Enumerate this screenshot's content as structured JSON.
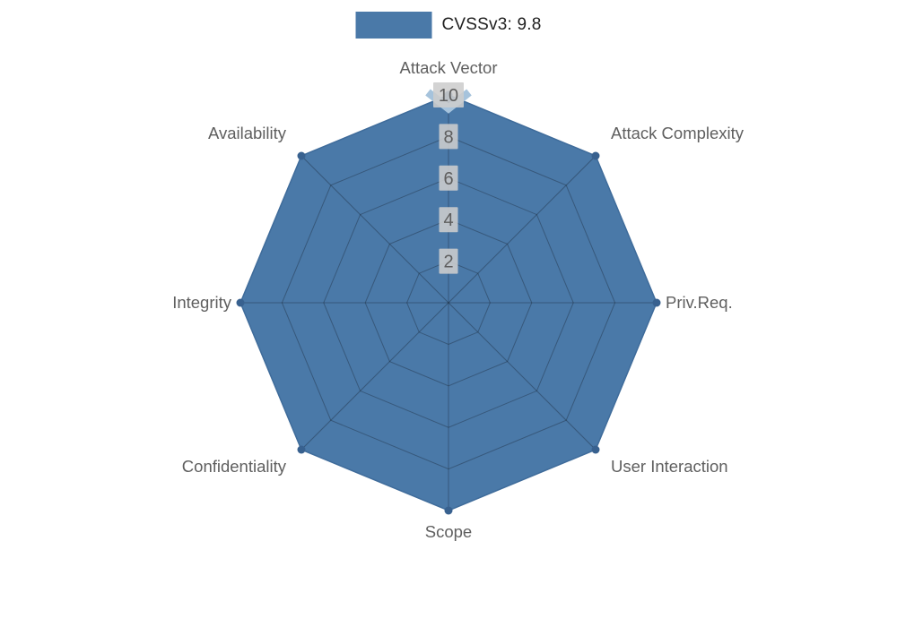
{
  "legend": {
    "label": "CVSSv3: 9.8"
  },
  "colors": {
    "series_fill": "#4a79a8",
    "series_stroke": "#3f6c9b",
    "marker": "#38618f",
    "highlight": "#a6c3dc",
    "grid": "rgba(20,30,40,0.35)",
    "tick_box": "#cdcdcd",
    "tick_text": "#5e5e5e",
    "axis_label": "#5f5f5f",
    "legend_text": "#1f1f1f",
    "background": "#ffffff"
  },
  "chart_data": {
    "type": "radar",
    "categories": [
      "Attack Vector",
      "Attack Complexity",
      "Priv.Req.",
      "User Interaction",
      "Scope",
      "Confidentiality",
      "Integrity",
      "Availability"
    ],
    "series": [
      {
        "name": "CVSSv3: 9.8",
        "values": [
          10,
          10,
          10,
          10,
          10,
          10,
          10,
          10
        ]
      }
    ],
    "ticks": [
      2,
      4,
      6,
      8,
      10
    ],
    "ylim": [
      0,
      10
    ],
    "grid": true,
    "legend_position": "top-center",
    "title": "",
    "xlabel": "",
    "ylabel": ""
  }
}
